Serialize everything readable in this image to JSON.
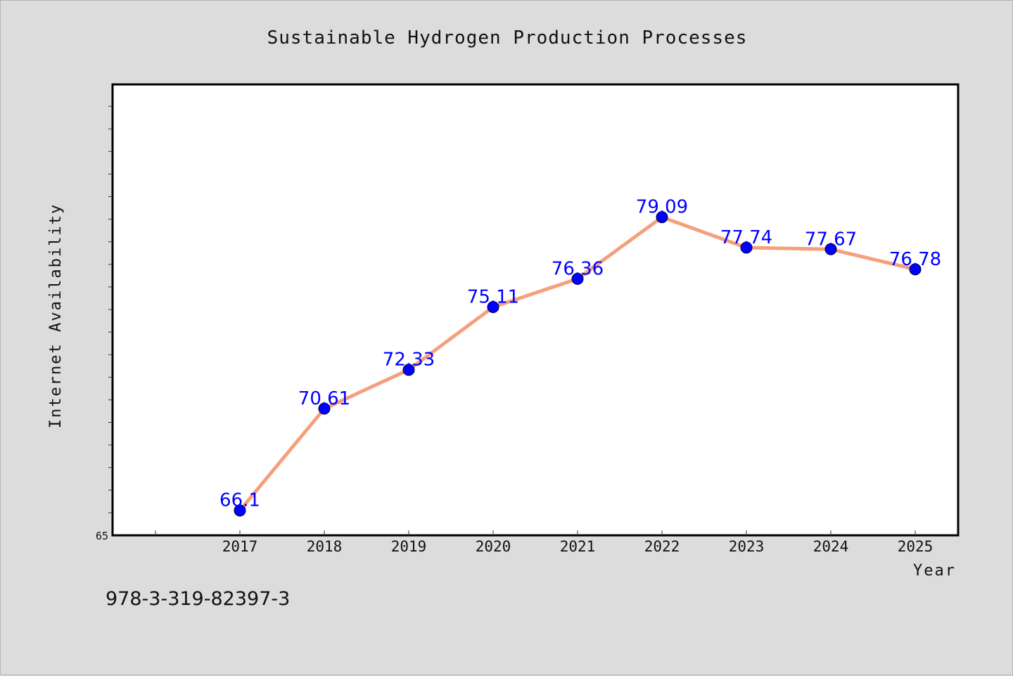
{
  "chart_data": {
    "type": "line",
    "title": "Sustainable Hydrogen Production Processes",
    "xlabel": "Year",
    "ylabel": "Internet Availability",
    "categories": [
      "2017",
      "2018",
      "2019",
      "2020",
      "2021",
      "2022",
      "2023",
      "2024",
      "2025"
    ],
    "series": [
      {
        "values": [
          66.1,
          70.61,
          72.33,
          75.11,
          76.36,
          79.09,
          77.74,
          77.67,
          76.78
        ],
        "labels": [
          "66.1",
          "70.61",
          "72.33",
          "75.11",
          "76.36",
          "79.09",
          "77.74",
          "77.67",
          "76.78"
        ],
        "line_color": "#f4a07c",
        "marker_color": "#0000ff"
      }
    ],
    "ylim": [
      65,
      85
    ],
    "y_tick_labels": [
      "65"
    ],
    "grid": false,
    "legend": false,
    "data_labels": true
  },
  "footer_text": "978-3-319-82397-3",
  "colors": {
    "background": "#dcdcdc",
    "plot_background": "#ffffff",
    "axis": "#000000",
    "data_label": "#0000ff"
  }
}
